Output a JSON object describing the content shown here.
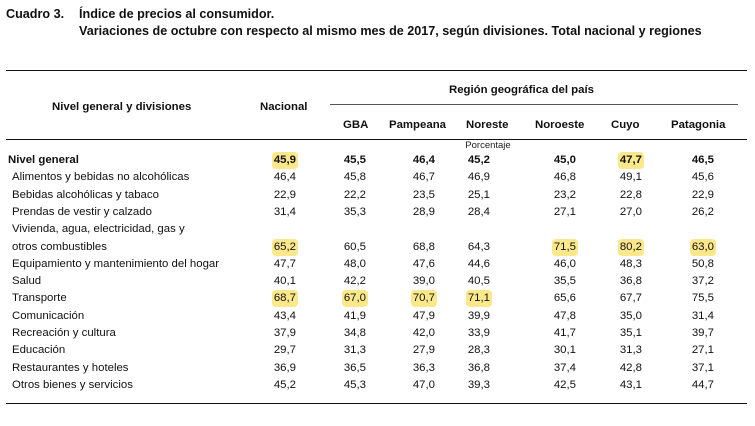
{
  "caption": {
    "label": "Cuadro 3.",
    "title": "Índice de precios al consumidor.",
    "subtitle": "Variaciones de octubre con respecto al mismo mes de 2017, según divisiones. Total nacional y regiones"
  },
  "header": {
    "row_label": "Nivel general y divisiones",
    "nacional": "Nacional",
    "region_group": "Región geográfica del país",
    "regions": [
      "GBA",
      "Pampeana",
      "Noreste",
      "Noroeste",
      "Cuyo",
      "Patagonia"
    ],
    "unit": "Porcentaje"
  },
  "rows": [
    {
      "label": "Nivel general",
      "values": [
        "45,9",
        "45,5",
        "46,4",
        "45,2",
        "45,0",
        "47,7",
        "46,5"
      ]
    },
    {
      "label": "Alimentos y bebidas no alcohólicas",
      "values": [
        "46,4",
        "45,8",
        "46,7",
        "46,9",
        "46,8",
        "49,1",
        "45,6"
      ]
    },
    {
      "label": "Bebidas alcohólicas y tabaco",
      "values": [
        "22,9",
        "22,2",
        "23,5",
        "25,1",
        "23,2",
        "22,8",
        "22,9"
      ]
    },
    {
      "label": "Prendas de vestir y calzado",
      "values": [
        "31,4",
        "35,3",
        "28,9",
        "28,4",
        "27,1",
        "27,0",
        "26,2"
      ]
    },
    {
      "label": "Vivienda, agua, electricidad, gas y",
      "values": []
    },
    {
      "label": "otros combustibles",
      "values": [
        "65,2",
        "60,5",
        "68,8",
        "64,3",
        "71,5",
        "80,2",
        "63,0"
      ]
    },
    {
      "label": "Equipamiento y mantenimiento del hogar",
      "values": [
        "47,7",
        "48,0",
        "47,6",
        "44,6",
        "46,0",
        "48,3",
        "50,8"
      ]
    },
    {
      "label": "Salud",
      "values": [
        "40,1",
        "42,2",
        "39,0",
        "40,5",
        "35,5",
        "36,8",
        "37,2"
      ]
    },
    {
      "label": "Transporte",
      "values": [
        "68,7",
        "67,0",
        "70,7",
        "71,1",
        "65,6",
        "67,7",
        "75,5"
      ]
    },
    {
      "label": "Comunicación",
      "values": [
        "43,4",
        "41,9",
        "47,9",
        "39,9",
        "47,8",
        "35,0",
        "31,4"
      ]
    },
    {
      "label": "Recreación y cultura",
      "values": [
        "37,9",
        "34,8",
        "42,0",
        "33,9",
        "41,7",
        "35,1",
        "39,7"
      ]
    },
    {
      "label": "Educación",
      "values": [
        "29,7",
        "31,3",
        "27,9",
        "28,3",
        "30,1",
        "31,3",
        "27,1"
      ]
    },
    {
      "label": "Restaurantes y hoteles",
      "values": [
        "36,9",
        "36,5",
        "36,3",
        "36,8",
        "37,4",
        "42,8",
        "37,1"
      ]
    },
    {
      "label": "Otros bienes y servicios",
      "values": [
        "45,2",
        "45,3",
        "47,0",
        "39,3",
        "42,5",
        "43,1",
        "44,7"
      ]
    }
  ],
  "highlight_color": "#fbe88a"
}
